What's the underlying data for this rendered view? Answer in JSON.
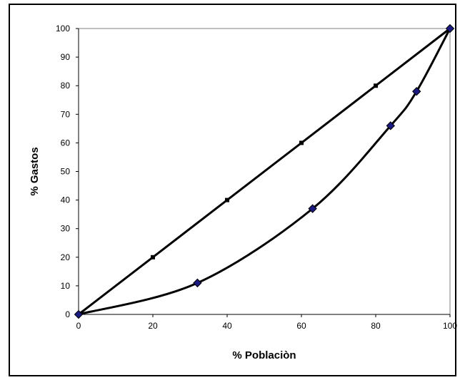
{
  "chart_data": {
    "type": "line",
    "title": "",
    "xlabel": "% Poblaciòn",
    "ylabel": "% Gastos",
    "xlim": [
      0,
      100
    ],
    "ylim": [
      0,
      100
    ],
    "xticks": [
      0,
      20,
      40,
      60,
      80,
      100
    ],
    "yticks": [
      0,
      10,
      20,
      30,
      40,
      50,
      60,
      70,
      80,
      90,
      100
    ],
    "grid": false,
    "legend": "none",
    "series": [
      {
        "marker": "square",
        "color": "#000000",
        "marker_color": "#000000",
        "x": [
          0,
          20,
          40,
          60,
          80,
          100
        ],
        "y": [
          0,
          20,
          40,
          60,
          80,
          100
        ]
      },
      {
        "marker": "diamond",
        "color": "#000000",
        "marker_color": "#1a1a80",
        "x": [
          0,
          32,
          63,
          84,
          91,
          100
        ],
        "y": [
          0,
          11,
          37,
          66,
          78,
          100
        ]
      }
    ]
  }
}
